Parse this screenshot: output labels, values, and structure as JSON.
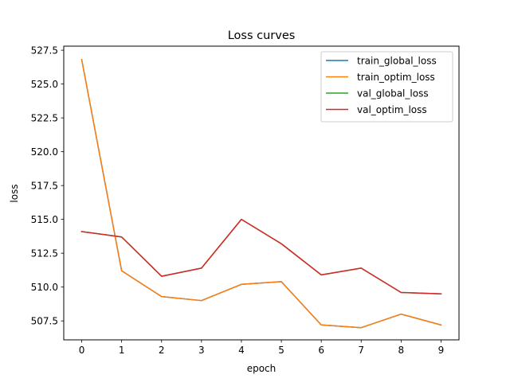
{
  "chart_data": {
    "type": "line",
    "title": "Loss curves",
    "xlabel": "epoch",
    "ylabel": "loss",
    "x": [
      0,
      1,
      2,
      3,
      4,
      5,
      6,
      7,
      8,
      9
    ],
    "xlim": [
      -0.45,
      9.45
    ],
    "ylim": [
      506.1,
      527.8
    ],
    "xticks": [
      "0",
      "1",
      "2",
      "3",
      "4",
      "5",
      "6",
      "7",
      "8",
      "9"
    ],
    "yticks": [
      "507.5",
      "510.0",
      "512.5",
      "515.0",
      "517.5",
      "520.0",
      "522.5",
      "525.0",
      "527.5"
    ],
    "grid": false,
    "legend_position": "upper right",
    "series": [
      {
        "name": "train_global_loss",
        "color": "#1f77b4",
        "values": [
          526.8,
          511.2,
          509.3,
          509.0,
          510.2,
          510.4,
          507.2,
          507.0,
          508.0,
          507.2
        ]
      },
      {
        "name": "train_optim_loss",
        "color": "#ff7f0e",
        "values": [
          526.8,
          511.2,
          509.3,
          509.0,
          510.2,
          510.4,
          507.2,
          507.0,
          508.0,
          507.2
        ]
      },
      {
        "name": "val_global_loss",
        "color": "#2ca02c",
        "values": [
          514.1,
          513.7,
          510.8,
          511.4,
          515.0,
          513.2,
          510.9,
          511.4,
          509.6,
          509.5
        ]
      },
      {
        "name": "val_optim_loss",
        "color": "#d62728",
        "values": [
          514.1,
          513.7,
          510.8,
          511.4,
          515.0,
          513.2,
          510.9,
          511.4,
          509.6,
          509.5
        ]
      }
    ]
  }
}
